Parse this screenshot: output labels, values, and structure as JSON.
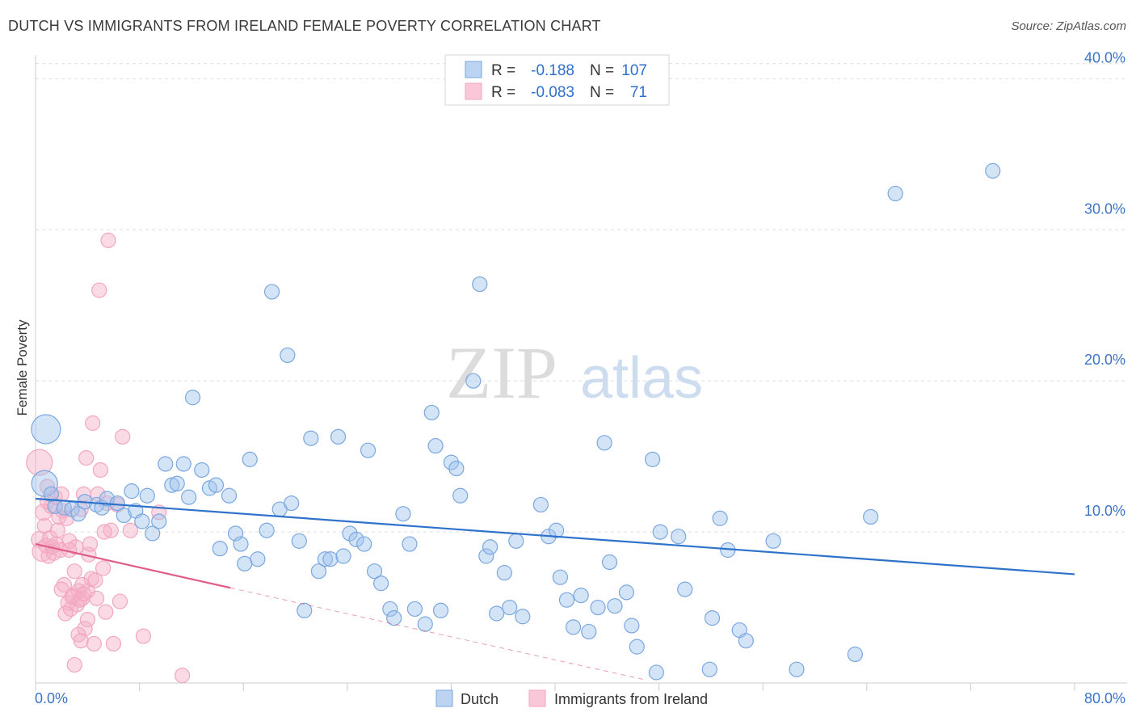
{
  "chart_data": {
    "type": "scatter",
    "title": "DUTCH VS IMMIGRANTS FROM IRELAND FEMALE POVERTY CORRELATION CHART",
    "source": "Source: ZipAtlas.com",
    "watermark": {
      "zip": "ZIP",
      "atlas": "atlas"
    },
    "ylabel": "Female Poverty",
    "xlim": [
      0,
      80
    ],
    "ylim": [
      0,
      42
    ],
    "x_tick_labels": {
      "left": "0.0%",
      "right": "80.0%"
    },
    "y_ticks": [
      {
        "value": 10,
        "label": "10.0%"
      },
      {
        "value": 20,
        "label": "20.0%"
      },
      {
        "value": 30,
        "label": "30.0%"
      },
      {
        "value": 40,
        "label": "40.0%"
      }
    ],
    "legend": {
      "rows": [
        {
          "r_label": "R =",
          "r_value": "-0.188",
          "n_label": "N =",
          "n_value": "107"
        },
        {
          "r_label": "R =",
          "r_value": "-0.083",
          "n_label": "N =",
          "n_value": "71"
        }
      ]
    },
    "series": [
      {
        "name": "Dutch",
        "color": "#7aa7e0",
        "line_color": "#2f72cc",
        "trend": {
          "x0": 0,
          "y0": 12.2,
          "x1": 80,
          "y1": 7.2
        },
        "points": [
          [
            0.8,
            16.8,
            18
          ],
          [
            0.7,
            13.2,
            16
          ],
          [
            1.5,
            11.7,
            9
          ],
          [
            2.2,
            11.6,
            9
          ],
          [
            2.8,
            11.5,
            9
          ],
          [
            3.3,
            11.2,
            9
          ],
          [
            3.8,
            12.0,
            9
          ],
          [
            4.7,
            11.8,
            9
          ],
          [
            5.1,
            11.6,
            9
          ],
          [
            5.5,
            12.2,
            9
          ],
          [
            6.3,
            11.9,
            9
          ],
          [
            6.8,
            11.1,
            9
          ],
          [
            7.4,
            12.7,
            9
          ],
          [
            7.7,
            11.4,
            9
          ],
          [
            8.2,
            10.7,
            9
          ],
          [
            8.6,
            12.4,
            9
          ],
          [
            9.0,
            9.9,
            9
          ],
          [
            9.5,
            10.7,
            9
          ],
          [
            10.0,
            14.5,
            9
          ],
          [
            10.5,
            13.1,
            9
          ],
          [
            10.9,
            13.2,
            9
          ],
          [
            11.4,
            14.5,
            9
          ],
          [
            11.8,
            12.3,
            9
          ],
          [
            12.1,
            18.9,
            9
          ],
          [
            12.8,
            14.1,
            9
          ],
          [
            13.4,
            12.9,
            9
          ],
          [
            13.9,
            13.1,
            9
          ],
          [
            14.2,
            8.9,
            9
          ],
          [
            14.9,
            12.4,
            9
          ],
          [
            15.4,
            9.9,
            9
          ],
          [
            15.8,
            9.2,
            9
          ],
          [
            16.1,
            7.9,
            9
          ],
          [
            16.5,
            14.8,
            9
          ],
          [
            17.1,
            8.2,
            9
          ],
          [
            17.8,
            10.1,
            9
          ],
          [
            18.2,
            25.9,
            9
          ],
          [
            18.8,
            11.5,
            9
          ],
          [
            19.4,
            21.7,
            9
          ],
          [
            19.7,
            11.9,
            9
          ],
          [
            20.3,
            9.4,
            9
          ],
          [
            20.7,
            4.8,
            9
          ],
          [
            21.2,
            16.2,
            9
          ],
          [
            21.8,
            7.4,
            9
          ],
          [
            22.3,
            8.2,
            9
          ],
          [
            22.7,
            8.2,
            9
          ],
          [
            23.3,
            16.3,
            9
          ],
          [
            23.7,
            8.4,
            9
          ],
          [
            24.2,
            9.9,
            9
          ],
          [
            24.7,
            9.5,
            9
          ],
          [
            25.3,
            9.2,
            9
          ],
          [
            25.6,
            15.4,
            9
          ],
          [
            26.1,
            7.4,
            9
          ],
          [
            26.6,
            6.6,
            9
          ],
          [
            27.3,
            4.9,
            9
          ],
          [
            27.6,
            4.3,
            9
          ],
          [
            28.3,
            11.2,
            9
          ],
          [
            28.8,
            9.2,
            9
          ],
          [
            29.2,
            4.9,
            9
          ],
          [
            30.0,
            3.9,
            9
          ],
          [
            30.5,
            17.9,
            9
          ],
          [
            30.8,
            15.7,
            9
          ],
          [
            31.2,
            4.8,
            9
          ],
          [
            32.0,
            14.6,
            9
          ],
          [
            32.4,
            14.2,
            9
          ],
          [
            32.7,
            12.4,
            9
          ],
          [
            33.7,
            20.0,
            9
          ],
          [
            34.2,
            26.4,
            9
          ],
          [
            34.7,
            8.4,
            9
          ],
          [
            35.0,
            9.0,
            9
          ],
          [
            35.5,
            4.6,
            9
          ],
          [
            36.1,
            7.3,
            9
          ],
          [
            36.5,
            5.0,
            9
          ],
          [
            37.0,
            9.4,
            9
          ],
          [
            37.5,
            4.4,
            9
          ],
          [
            38.9,
            11.8,
            9
          ],
          [
            39.5,
            9.7,
            9
          ],
          [
            40.1,
            10.1,
            9
          ],
          [
            40.4,
            7.0,
            9
          ],
          [
            40.9,
            5.5,
            9
          ],
          [
            41.4,
            3.7,
            9
          ],
          [
            42.0,
            5.8,
            9
          ],
          [
            42.6,
            3.4,
            9
          ],
          [
            43.3,
            5.0,
            9
          ],
          [
            43.8,
            15.9,
            9
          ],
          [
            44.2,
            8.0,
            9
          ],
          [
            44.6,
            5.1,
            9
          ],
          [
            45.5,
            6.0,
            9
          ],
          [
            45.9,
            3.8,
            9
          ],
          [
            46.3,
            2.4,
            9
          ],
          [
            47.5,
            14.8,
            9
          ],
          [
            47.8,
            0.7,
            9
          ],
          [
            48.1,
            10.0,
            9
          ],
          [
            49.5,
            9.7,
            9
          ],
          [
            50.0,
            6.2,
            9
          ],
          [
            51.9,
            0.9,
            9
          ],
          [
            52.1,
            4.3,
            9
          ],
          [
            52.7,
            10.9,
            9
          ],
          [
            53.3,
            8.8,
            9
          ],
          [
            54.2,
            3.5,
            9
          ],
          [
            54.7,
            2.8,
            9
          ],
          [
            56.8,
            9.4,
            9
          ],
          [
            58.6,
            0.9,
            9
          ],
          [
            63.1,
            1.9,
            9
          ],
          [
            64.3,
            11.0,
            9
          ],
          [
            66.2,
            32.4,
            9
          ],
          [
            73.7,
            33.9,
            9
          ],
          [
            1.2,
            12.5,
            9
          ]
        ]
      },
      {
        "name": "Immigrants from Ireland",
        "color": "#f3a6c0",
        "line_color": "#e05d8a",
        "trend": {
          "x0": 0,
          "y0": 9.2,
          "x1": 15.0,
          "y1": 6.3
        },
        "trend_dashed": {
          "x0": 15.0,
          "y0": 6.3,
          "x1": 47.0,
          "y1": 0.2
        },
        "points": [
          [
            0.3,
            14.6,
            16
          ],
          [
            0.3,
            9.5,
            10
          ],
          [
            0.5,
            8.7,
            12
          ],
          [
            0.6,
            11.3,
            10
          ],
          [
            0.7,
            10.4,
            9
          ],
          [
            0.8,
            9.1,
            9
          ],
          [
            0.9,
            13.0,
            9
          ],
          [
            1.0,
            8.4,
            9
          ],
          [
            1.2,
            11.7,
            9
          ],
          [
            1.3,
            9.0,
            9
          ],
          [
            1.5,
            12.3,
            9
          ],
          [
            1.6,
            9.2,
            9
          ],
          [
            1.8,
            11.0,
            9
          ],
          [
            2.0,
            12.5,
            9
          ],
          [
            2.1,
            11.4,
            9
          ],
          [
            2.2,
            6.5,
            9
          ],
          [
            2.4,
            10.9,
            9
          ],
          [
            2.5,
            5.3,
            9
          ],
          [
            2.6,
            9.4,
            9
          ],
          [
            2.7,
            4.9,
            9
          ],
          [
            2.9,
            5.8,
            9
          ],
          [
            3.0,
            1.2,
            9
          ],
          [
            3.1,
            9.0,
            9
          ],
          [
            3.2,
            5.2,
            9
          ],
          [
            3.3,
            6.1,
            9
          ],
          [
            3.4,
            5.5,
            9
          ],
          [
            3.5,
            11.5,
            9
          ],
          [
            3.6,
            5.6,
            9
          ],
          [
            3.7,
            12.5,
            9
          ],
          [
            3.8,
            3.6,
            9
          ],
          [
            3.9,
            14.9,
            9
          ],
          [
            4.0,
            6.1,
            9
          ],
          [
            4.1,
            8.5,
            9
          ],
          [
            4.2,
            9.2,
            9
          ],
          [
            4.3,
            6.9,
            9
          ],
          [
            4.4,
            17.2,
            9
          ],
          [
            4.5,
            2.6,
            9
          ],
          [
            4.7,
            5.6,
            9
          ],
          [
            4.8,
            12.5,
            9
          ],
          [
            4.9,
            26.0,
            9
          ],
          [
            5.0,
            14.1,
            9
          ],
          [
            5.2,
            7.6,
            9
          ],
          [
            5.4,
            4.7,
            9
          ],
          [
            5.5,
            11.9,
            9
          ],
          [
            5.6,
            29.3,
            9
          ],
          [
            5.8,
            10.1,
            9
          ],
          [
            6.0,
            2.6,
            9
          ],
          [
            6.3,
            11.8,
            9
          ],
          [
            6.5,
            5.4,
            9
          ],
          [
            6.7,
            16.3,
            9
          ],
          [
            7.3,
            10.1,
            9
          ],
          [
            8.3,
            3.1,
            9
          ],
          [
            9.5,
            11.3,
            9
          ],
          [
            11.3,
            0.5,
            9
          ],
          [
            3.0,
            7.4,
            9
          ],
          [
            1.9,
            8.8,
            9
          ],
          [
            2.3,
            4.6,
            9
          ],
          [
            3.6,
            6.5,
            9
          ],
          [
            4.0,
            4.2,
            9
          ],
          [
            1.1,
            9.6,
            9
          ],
          [
            2.8,
            5.7,
            9
          ],
          [
            3.3,
            3.2,
            9
          ],
          [
            1.4,
            8.6,
            9
          ],
          [
            2.0,
            6.2,
            9
          ],
          [
            3.7,
            5.9,
            9
          ],
          [
            0.9,
            12.0,
            9
          ],
          [
            1.7,
            10.1,
            9
          ],
          [
            2.6,
            8.8,
            9
          ],
          [
            4.6,
            6.8,
            9
          ],
          [
            5.3,
            10.0,
            9
          ],
          [
            3.5,
            2.8,
            9
          ]
        ]
      }
    ]
  }
}
